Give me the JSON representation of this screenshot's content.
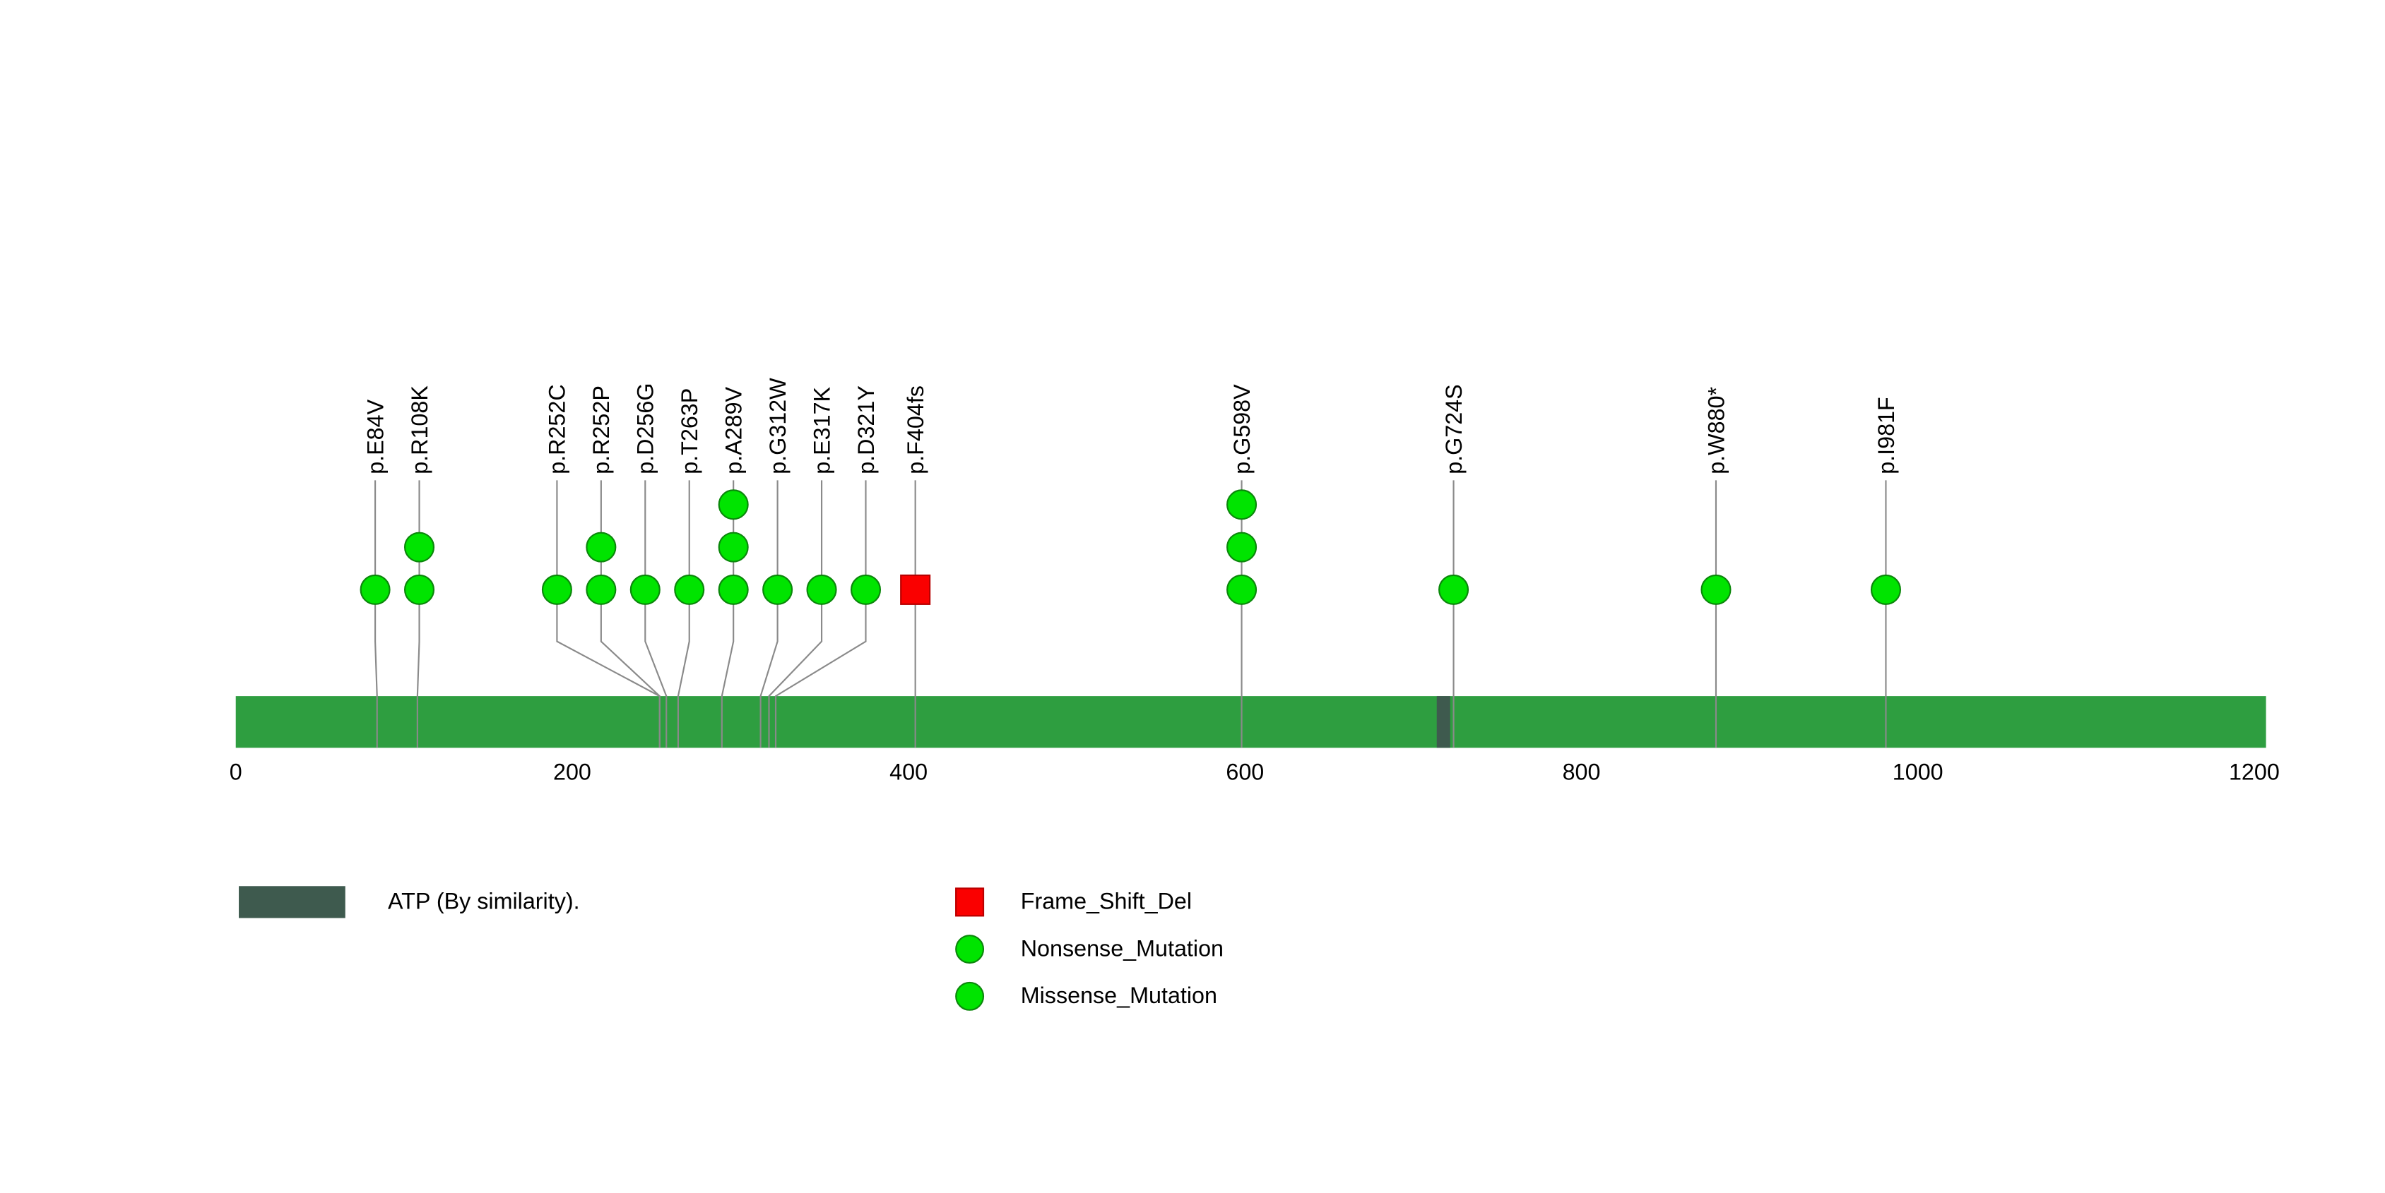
{
  "chart_data": {
    "type": "lollipop",
    "title": "",
    "xlabel": "",
    "ylabel": "",
    "x_ticks": [
      0,
      200,
      400,
      600,
      800,
      1000,
      1200
    ],
    "xlim": [
      0,
      1207
    ],
    "protein_bar_color": "#2e9e40",
    "stem_color": "#8a8a8a",
    "mutations": [
      {
        "label": "p.E84V",
        "position": 84,
        "count": 1,
        "type": "Missense_Mutation"
      },
      {
        "label": "p.R108K",
        "position": 108,
        "count": 2,
        "type": "Missense_Mutation"
      },
      {
        "label": "p.R252C",
        "position": 252,
        "count": 1,
        "type": "Missense_Mutation"
      },
      {
        "label": "p.R252P",
        "position": 252,
        "count": 2,
        "type": "Missense_Mutation"
      },
      {
        "label": "p.D256G",
        "position": 256,
        "count": 1,
        "type": "Missense_Mutation"
      },
      {
        "label": "p.T263P",
        "position": 263,
        "count": 1,
        "type": "Missense_Mutation"
      },
      {
        "label": "p.A289V",
        "position": 289,
        "count": 3,
        "type": "Missense_Mutation"
      },
      {
        "label": "p.G312W",
        "position": 312,
        "count": 1,
        "type": "Missense_Mutation"
      },
      {
        "label": "p.E317K",
        "position": 317,
        "count": 1,
        "type": "Missense_Mutation"
      },
      {
        "label": "p.D321Y",
        "position": 321,
        "count": 1,
        "type": "Missense_Mutation"
      },
      {
        "label": "p.F404fs",
        "position": 404,
        "count": 1,
        "type": "Frame_Shift_Del"
      },
      {
        "label": "p.G598V",
        "position": 598,
        "count": 3,
        "type": "Missense_Mutation"
      },
      {
        "label": "p.G724S",
        "position": 724,
        "count": 1,
        "type": "Missense_Mutation"
      },
      {
        "label": "p.W880*",
        "position": 880,
        "count": 1,
        "type": "Nonsense_Mutation"
      },
      {
        "label": "p.I981F",
        "position": 981,
        "count": 1,
        "type": "Missense_Mutation"
      }
    ],
    "domains": [
      {
        "name": "ATP (By similarity).",
        "start": 714,
        "end": 722,
        "color": "#3e5a4e"
      }
    ],
    "marker_styles": {
      "Missense_Mutation": {
        "fill": "#00e400",
        "stroke": "#0b870b",
        "shape": "circle"
      },
      "Nonsense_Mutation": {
        "fill": "#00e400",
        "stroke": "#0b870b",
        "shape": "circle"
      },
      "Frame_Shift_Del": {
        "fill": "#fa0000",
        "stroke": "#b80000",
        "shape": "square"
      }
    }
  },
  "legend": {
    "domain": {
      "label": "ATP (By similarity).",
      "color": "#3e5a4e"
    },
    "types": [
      {
        "label": "Frame_Shift_Del",
        "shape": "square",
        "color": "#fa0000"
      },
      {
        "label": "Nonsense_Mutation",
        "shape": "circle",
        "color": "#00e400"
      },
      {
        "label": "Missense_Mutation",
        "shape": "circle",
        "color": "#00e400"
      }
    ]
  }
}
